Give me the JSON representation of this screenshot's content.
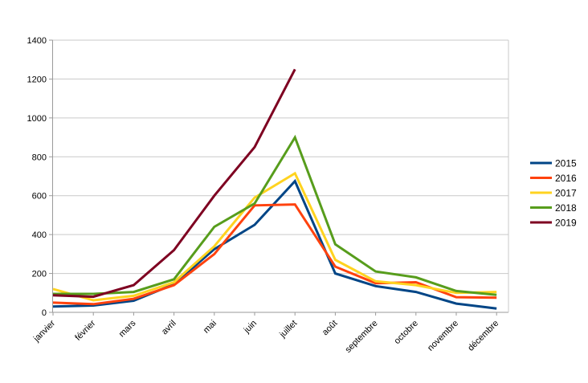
{
  "chart_data": {
    "type": "line",
    "title": "",
    "xlabel": "",
    "ylabel": "",
    "categories": [
      "janvier",
      "février",
      "mars",
      "avril",
      "mai",
      "juin",
      "juillet",
      "août",
      "septembre",
      "octobre",
      "novembre",
      "décembre"
    ],
    "series": [
      {
        "name": "2015",
        "color": "#004586",
        "values": [
          30,
          35,
          60,
          145,
          325,
          450,
          675,
          200,
          135,
          105,
          45,
          20
        ]
      },
      {
        "name": "2016",
        "color": "#FF420E",
        "values": [
          50,
          42,
          70,
          140,
          300,
          550,
          555,
          235,
          150,
          155,
          78,
          75
        ]
      },
      {
        "name": "2017",
        "color": "#FFD320",
        "values": [
          120,
          62,
          85,
          155,
          340,
          590,
          715,
          270,
          160,
          140,
          100,
          105
        ]
      },
      {
        "name": "2018",
        "color": "#579D1C",
        "values": [
          95,
          95,
          105,
          170,
          440,
          560,
          900,
          350,
          210,
          180,
          110,
          90
        ]
      },
      {
        "name": "2019",
        "color": "#7E0021",
        "values": [
          88,
          80,
          140,
          320,
          600,
          850,
          1250,
          null,
          null,
          null,
          null,
          null
        ]
      }
    ],
    "ylim": [
      0,
      1400
    ],
    "ytick_step": 200,
    "ytick_labels": [
      "0",
      "200",
      "400",
      "600",
      "800",
      "1000",
      "1200",
      "1400"
    ],
    "grid": "horizontal",
    "legend_position": "right",
    "line_width": 3,
    "background": "#ffffff",
    "axis_color": "#9a9a9a",
    "grid_color": "#c9c9c9",
    "text_color": "#000000"
  }
}
